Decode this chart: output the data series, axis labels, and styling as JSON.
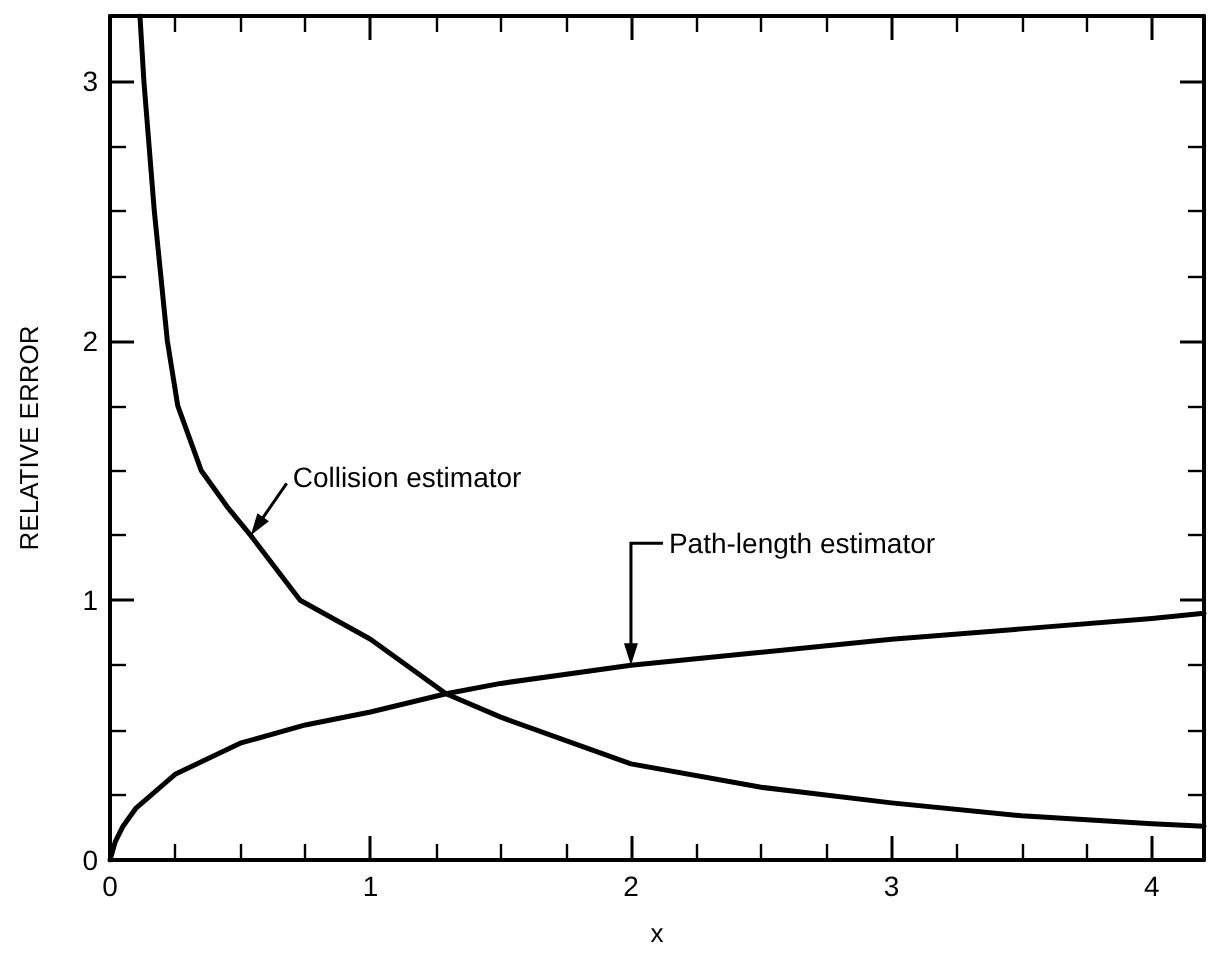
{
  "chart_data": {
    "type": "line",
    "xlabel": "x",
    "ylabel": "RELATIVE ERROR",
    "xlim": [
      0,
      4.2
    ],
    "ylim": [
      0,
      3.25
    ],
    "xticks": [
      0,
      1,
      2,
      3,
      4
    ],
    "yticks": [
      0,
      1,
      2,
      3
    ],
    "grid": false,
    "legend": false,
    "marker": "none",
    "line_style": "solid",
    "series": [
      {
        "name": "Collision estimator",
        "color": "#000000",
        "x": [
          0.115,
          0.13,
          0.17,
          0.22,
          0.26,
          0.35,
          0.45,
          0.54,
          0.73,
          1,
          1.29,
          1.5,
          2,
          2.5,
          3,
          3.5,
          4,
          4.2
        ],
        "values": [
          3.25,
          3,
          2.5,
          2,
          1.75,
          1.5,
          1.36,
          1.25,
          1,
          0.85,
          0.64,
          0.55,
          0.37,
          0.28,
          0.22,
          0.17,
          0.14,
          0.13
        ]
      },
      {
        "name": "Path-length estimator",
        "color": "#000000",
        "x": [
          0,
          0.02,
          0.05,
          0.1,
          0.25,
          0.5,
          0.75,
          1,
          1.29,
          1.5,
          2,
          2.5,
          3,
          3.5,
          4,
          4.2
        ],
        "values": [
          0,
          0.07,
          0.13,
          0.2,
          0.33,
          0.45,
          0.52,
          0.57,
          0.64,
          0.68,
          0.75,
          0.8,
          0.85,
          0.89,
          0.93,
          0.95
        ]
      }
    ]
  }
}
